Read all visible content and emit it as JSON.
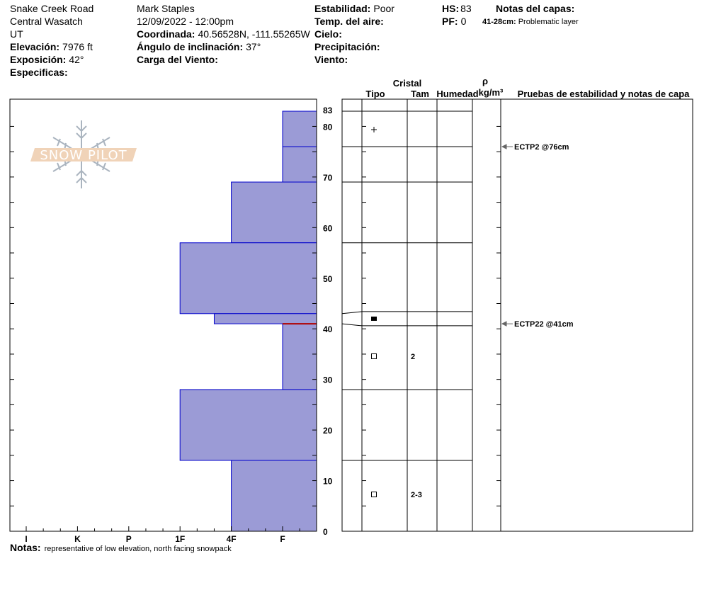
{
  "header": {
    "location": "Snake Creek Road",
    "range": "Central Wasatch",
    "state": "UT",
    "elevation_label": "Elevación:",
    "elevation": "7976 ft",
    "aspect_label": "Exposición:",
    "aspect": "42°",
    "specifics_label": "Especificas:",
    "observer": "Mark Staples",
    "datetime": "12/09/2022 - 12:00pm",
    "coord_label": "Coordinada:",
    "coord": "40.56528N, -111.55265W",
    "slope_label": "Ángulo de inclinación:",
    "slope": "37°",
    "wind_loading_label": "Carga del Viento:",
    "stability_label": "Estabilidad:",
    "stability": "Poor",
    "air_temp_label": "Temp. del aire:",
    "sky_label": "Cielo:",
    "precip_label": "Precipitación:",
    "wind_label": "Viento:",
    "hs_label": "HS:",
    "hs": "83",
    "pf_label": "PF:",
    "pf": "0",
    "layer_notes_label": "Notas del capas:",
    "layer_note_range": "41-28cm:",
    "layer_note_text": "Problematic layer"
  },
  "logo": {
    "text": "SNOW PILOT"
  },
  "columns": {
    "crystal": "Cristal",
    "type": "Tipo",
    "size": "Tam",
    "moisture": "Humedad",
    "rho": "ρ",
    "density_unit": "kg/m³",
    "tests": "Pruebas de estabilidad y notas de capa"
  },
  "notes": {
    "label": "Notas:",
    "text": "representative of low elevation, north facing snowpack"
  },
  "colors": {
    "layer_fill": "#9b9bd6",
    "layer_edge": "#0000cc",
    "weak_layer": "#b00000"
  },
  "chart_data": {
    "type": "bar",
    "orientation": "horizontal-profile",
    "ylabel": "",
    "ylim": [
      0,
      83
    ],
    "y_ticks": [
      "83",
      "80",
      "70",
      "60",
      "50",
      "40",
      "30",
      "20",
      "10",
      "0"
    ],
    "x_ticks": [
      "I",
      "K",
      "P",
      "1F",
      "4F",
      "F"
    ],
    "layers": [
      {
        "top": 83,
        "bottom": 76,
        "hardness": "F",
        "grain": "plus",
        "size": ""
      },
      {
        "top": 76,
        "bottom": 69,
        "hardness": "F",
        "grain": "",
        "size": ""
      },
      {
        "top": 69,
        "bottom": 57,
        "hardness": "4F",
        "grain": "",
        "size": ""
      },
      {
        "top": 57,
        "bottom": 43,
        "hardness": "1F",
        "grain": "",
        "size": ""
      },
      {
        "top": 43,
        "bottom": 41,
        "hardness": "4F-",
        "grain": "filled-rect",
        "size": ""
      },
      {
        "top": 41,
        "bottom": 28,
        "hardness": "F",
        "grain": "open-square",
        "size": "2"
      },
      {
        "top": 28,
        "bottom": 14,
        "hardness": "1F",
        "grain": "",
        "size": ""
      },
      {
        "top": 14,
        "bottom": 0,
        "hardness": "4F",
        "grain": "open-square",
        "size": "2-3"
      }
    ],
    "weak_layer_depth": 41,
    "tests": [
      {
        "depth": 76,
        "label": "ECTP2 @76cm"
      },
      {
        "depth": 41,
        "label": "ECTP22 @41cm"
      }
    ]
  }
}
